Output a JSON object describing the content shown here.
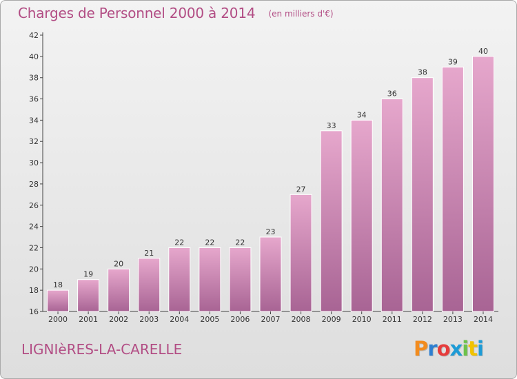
{
  "chart_data": {
    "type": "bar",
    "title": "Charges de Personnel 2000 à 2014",
    "subtitle": "(en milliers d'€)",
    "categories": [
      "2000",
      "2001",
      "2002",
      "2003",
      "2004",
      "2005",
      "2006",
      "2007",
      "2008",
      "2009",
      "2010",
      "2011",
      "2012",
      "2013",
      "2014"
    ],
    "values": [
      18,
      19,
      20,
      21,
      22,
      22,
      22,
      23,
      27,
      33,
      34,
      36,
      38,
      39,
      40
    ],
    "ylim": [
      16,
      42
    ],
    "yticks": [
      16,
      18,
      20,
      22,
      24,
      26,
      28,
      30,
      32,
      34,
      36,
      38,
      40,
      42
    ],
    "grid": false,
    "bar_color": "#d98cb8",
    "text_color": "#b24d84"
  },
  "footer": {
    "town": "LIGNIèRES-LA-CARELLE",
    "brand": "Proxiti",
    "brand_colors": [
      "#f28c1f",
      "#2d7fd1",
      "#e63c3c",
      "#1d9bd6",
      "#6cc24a",
      "#f2c300",
      "#1d9bd6"
    ]
  }
}
